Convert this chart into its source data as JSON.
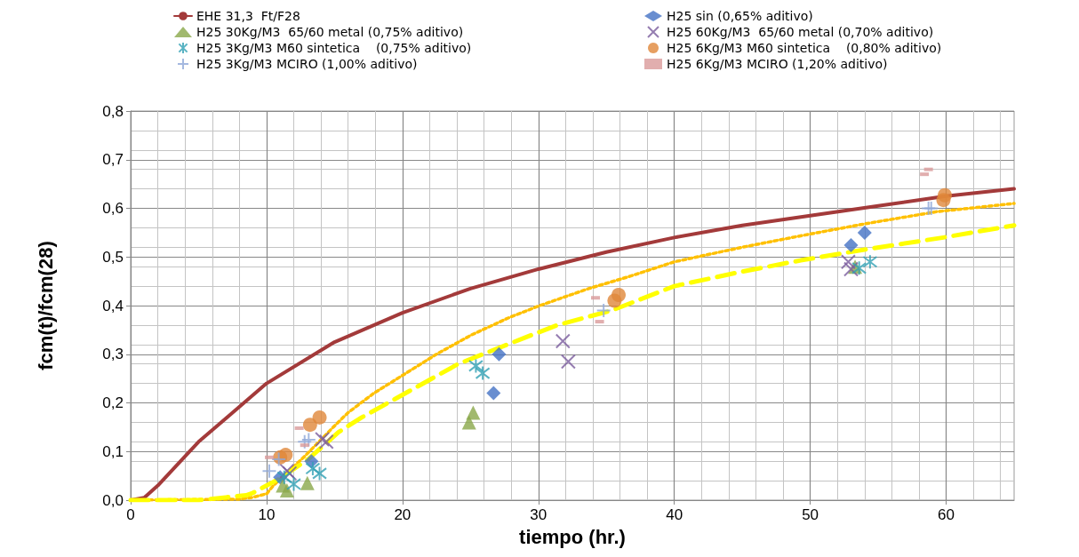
{
  "chart_data": {
    "type": "scatter",
    "xlabel": "tiempo (hr.)",
    "ylabel": "fcm(t)/fcm(28)",
    "xlim": [
      0,
      65
    ],
    "xticks": [
      0,
      10,
      20,
      30,
      40,
      50,
      60
    ],
    "ylim": [
      0,
      0.8
    ],
    "yticks": [
      {
        "value": 0,
        "label": "0,0"
      },
      {
        "value": 0.1,
        "label": "0,1"
      },
      {
        "value": 0.2,
        "label": "0,2"
      },
      {
        "value": 0.3,
        "label": "0,3"
      },
      {
        "value": 0.4,
        "label": "0,4"
      },
      {
        "value": 0.5,
        "label": "0,5"
      },
      {
        "value": 0.6,
        "label": "0,6"
      },
      {
        "value": 0.7,
        "label": "0,7"
      },
      {
        "value": 0.8,
        "label": "0,8"
      }
    ],
    "grid": true,
    "legend": "top",
    "series": [
      {
        "name": "EHE 31,3  Ft/F28",
        "type": "line",
        "color": "#a33a3a",
        "marker": "none",
        "line_style": "solid",
        "x": [
          0,
          1,
          2,
          5,
          10,
          15,
          20,
          25,
          30,
          35,
          40,
          45,
          50,
          55,
          60,
          65
        ],
        "values": [
          0,
          0.005,
          0.03,
          0.12,
          0.24,
          0.325,
          0.385,
          0.435,
          0.475,
          0.51,
          0.54,
          0.565,
          0.585,
          0.605,
          0.625,
          0.64
        ]
      },
      {
        "name": "H25 sin (0,65% aditivo)",
        "color": "#4472c4",
        "marker": "diamond",
        "x": [
          11.0,
          13.3,
          26.7,
          27.1,
          53.0,
          54.0
        ],
        "values": [
          0.047,
          0.08,
          0.22,
          0.3,
          0.524,
          0.55
        ]
      },
      {
        "name": "H25 30Kg/M3  65/60 metal (0,75% aditivo)",
        "color": "#8aa84a",
        "marker": "triangle",
        "x": [
          11.2,
          11.5,
          13.0,
          24.9,
          25.2,
          53.3
        ],
        "values": [
          0.03,
          0.02,
          0.035,
          0.16,
          0.18,
          0.48
        ]
      },
      {
        "name": "H25 60Kg/M3  65/60 metal (0,70% aditivo)",
        "color": "#7a5c9e",
        "marker": "x",
        "x": [
          11.5,
          11.7,
          14.1,
          14.4,
          31.8,
          32.2,
          52.8,
          53.0
        ],
        "values": [
          0.06,
          0.055,
          0.125,
          0.12,
          0.327,
          0.285,
          0.49,
          0.475
        ]
      },
      {
        "name": "H25 3Kg/M3 M60 sintetica    (0,75% aditivo)",
        "color": "#31a0b4",
        "marker": "cross",
        "x": [
          11.3,
          12.0,
          13.4,
          13.9,
          25.4,
          25.9,
          53.6,
          54.4
        ],
        "values": [
          0.047,
          0.033,
          0.065,
          0.055,
          0.276,
          0.261,
          0.477,
          0.49
        ]
      },
      {
        "name": "H25 6Kg/M3 M60 sintetica    (0,80% aditivo)",
        "color": "#e0873a",
        "marker": "circle",
        "x": [
          11.0,
          11.4,
          13.2,
          13.9,
          35.6,
          35.9,
          59.9,
          59.8
        ],
        "values": [
          0.088,
          0.093,
          0.155,
          0.17,
          0.41,
          0.422,
          0.627,
          0.617
        ]
      },
      {
        "name": "H25 3Kg/M3 MCIRO (1,00% aditivo)",
        "color": "#8fa8d8",
        "marker": "plus",
        "x": [
          10.2,
          10.9,
          12.8,
          13.1,
          34.8,
          58.7,
          58.9
        ],
        "values": [
          0.06,
          0.084,
          0.12,
          0.124,
          0.39,
          0.6,
          0.6
        ]
      },
      {
        "name": "H25 6Kg/M3 MCIRO (1,20% aditivo)",
        "color": "#d99a9a",
        "marker": "square",
        "x": [
          10.2,
          12.4,
          12.8,
          34.2,
          34.5,
          58.4,
          58.7
        ],
        "values": [
          0.088,
          0.148,
          0.113,
          0.416,
          0.367,
          0.67,
          0.68
        ]
      },
      {
        "type": "line",
        "color": "#ffc000",
        "marker": "none",
        "line_style": "dotted",
        "x": [
          0,
          8,
          9,
          10,
          10.5,
          12.8,
          14.9,
          16,
          17.9,
          22.5,
          25.1,
          27.9,
          30.1,
          33.7,
          36.7,
          40,
          45,
          49.4,
          54,
          59.3,
          65
        ],
        "values": [
          0,
          0.002,
          0.006,
          0.013,
          0.03,
          0.09,
          0.15,
          0.18,
          0.22,
          0.3,
          0.34,
          0.376,
          0.4,
          0.435,
          0.46,
          0.49,
          0.52,
          0.544,
          0.568,
          0.593,
          0.61
        ]
      },
      {
        "type": "line",
        "color": "#ffff00",
        "marker": "none",
        "line_style": "dashed",
        "x": [
          0,
          5,
          8.5,
          9,
          11,
          13.1,
          15.3,
          17,
          24.1,
          29,
          31.4,
          35.4,
          40,
          45,
          49.3,
          54.4,
          59.8,
          65
        ],
        "values": [
          0,
          0,
          0.01,
          0.015,
          0.045,
          0.085,
          0.14,
          0.17,
          0.28,
          0.334,
          0.36,
          0.39,
          0.44,
          0.47,
          0.493,
          0.517,
          0.54,
          0.565
        ]
      }
    ]
  }
}
